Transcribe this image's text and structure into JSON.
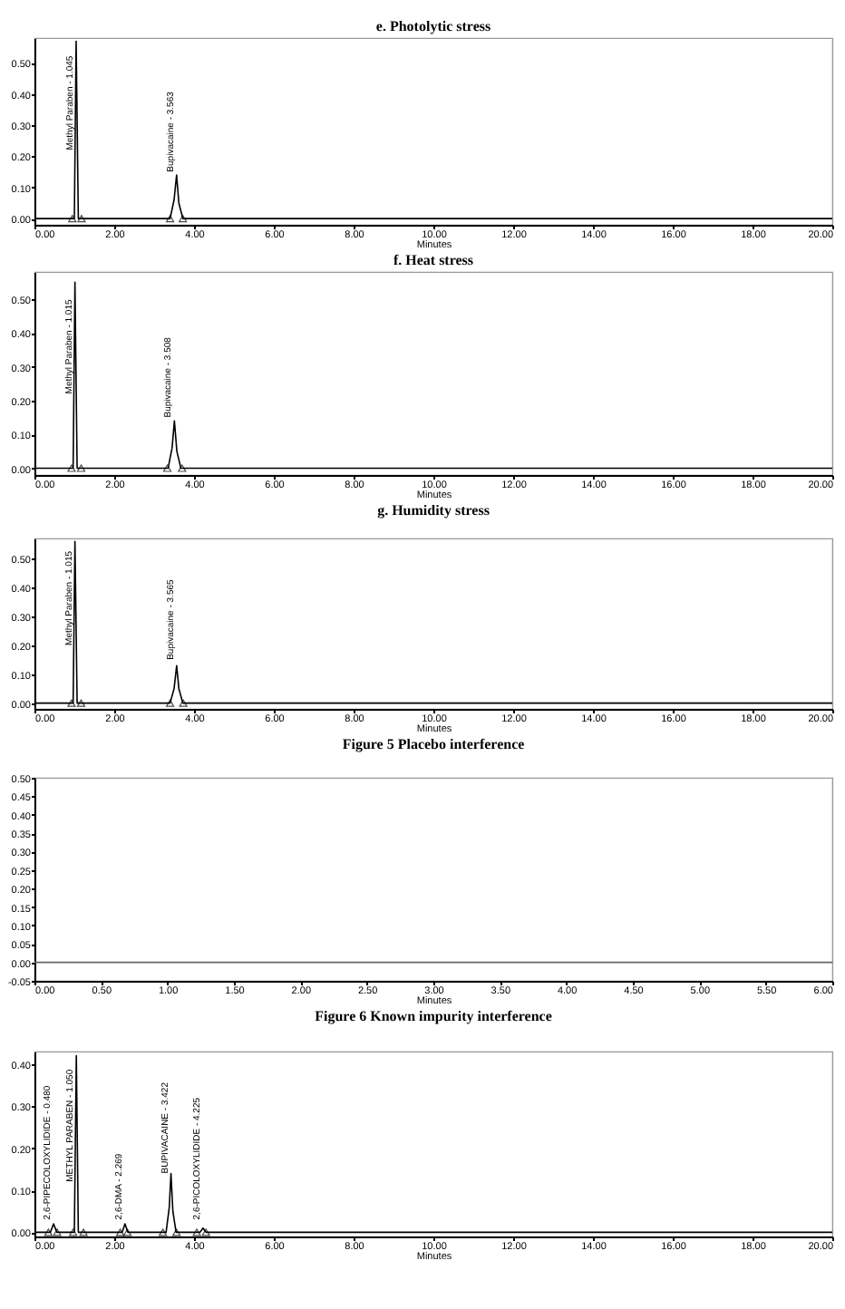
{
  "chart_data": [
    {
      "type": "line",
      "title": "e. Photolytic stress",
      "xlabel": "Minutes",
      "xlim": [
        0,
        20
      ],
      "xticks": [
        {
          "value": 0,
          "label": "0.00"
        },
        {
          "value": 2,
          "label": "2.00"
        },
        {
          "value": 4,
          "label": "4.00"
        },
        {
          "value": 6,
          "label": "6.00"
        },
        {
          "value": 8,
          "label": "8.00"
        },
        {
          "value": 10,
          "label": "10.00"
        },
        {
          "value": 12,
          "label": "12.00"
        },
        {
          "value": 14,
          "label": "14.00"
        },
        {
          "value": 16,
          "label": "16.00"
        },
        {
          "value": 18,
          "label": "18.00"
        },
        {
          "value": 20,
          "label": "20.00"
        }
      ],
      "ylim": [
        -0.02,
        0.58
      ],
      "yticks": [
        {
          "value": 0,
          "label": "0.00"
        },
        {
          "value": 0.1,
          "label": "0.10"
        },
        {
          "value": 0.2,
          "label": "0.20"
        },
        {
          "value": 0.3,
          "label": "0.30"
        },
        {
          "value": 0.4,
          "label": "0.40"
        },
        {
          "value": 0.5,
          "label": "0.50"
        }
      ],
      "series": [
        {
          "color": "#000000",
          "x": [
            0,
            1.0,
            1.045,
            1.1,
            3.4,
            3.5,
            3.563,
            3.62,
            3.72,
            20
          ],
          "values": [
            0,
            0,
            0.57,
            0,
            0,
            0.06,
            0.14,
            0.05,
            0,
            0
          ]
        },
        {
          "type": "scatter",
          "marker": "triangle",
          "color": "#000000",
          "x": [
            0.95,
            1.18,
            3.4,
            3.72
          ],
          "values": [
            0,
            0,
            0,
            0
          ]
        }
      ],
      "annotations": [
        {
          "text": "Methyl Paraben - 1.045",
          "x": 1.045,
          "y": 0.22
        },
        {
          "text": "Bupivacaine - 3.563",
          "x": 3.563,
          "y": 0.15
        }
      ]
    },
    {
      "type": "line",
      "title": "f. Heat stress",
      "xlabel": "Minutes",
      "xlim": [
        0,
        20
      ],
      "xticks": [
        {
          "value": 0,
          "label": "0.00"
        },
        {
          "value": 2,
          "label": "2.00"
        },
        {
          "value": 4,
          "label": "4.00"
        },
        {
          "value": 6,
          "label": "6.00"
        },
        {
          "value": 8,
          "label": "8.00"
        },
        {
          "value": 10,
          "label": "10.00"
        },
        {
          "value": 12,
          "label": "12.00"
        },
        {
          "value": 14,
          "label": "14.00"
        },
        {
          "value": 16,
          "label": "16.00"
        },
        {
          "value": 18,
          "label": "18.00"
        },
        {
          "value": 20,
          "label": "20.00"
        }
      ],
      "ylim": [
        -0.02,
        0.58
      ],
      "yticks": [
        {
          "value": 0,
          "label": "0.00"
        },
        {
          "value": 0.1,
          "label": "0.10"
        },
        {
          "value": 0.2,
          "label": "0.20"
        },
        {
          "value": 0.3,
          "label": "0.30"
        },
        {
          "value": 0.4,
          "label": "0.40"
        },
        {
          "value": 0.5,
          "label": "0.50"
        }
      ],
      "series": [
        {
          "color": "#000000",
          "x": [
            0,
            0.97,
            1.015,
            1.07,
            3.35,
            3.45,
            3.508,
            3.57,
            3.67,
            20
          ],
          "values": [
            0,
            0,
            0.55,
            0,
            0,
            0.06,
            0.14,
            0.05,
            0,
            0
          ]
        },
        {
          "type": "scatter",
          "marker": "triangle",
          "color": "#000000",
          "x": [
            0.93,
            1.17,
            3.33,
            3.7
          ],
          "values": [
            0,
            0,
            0,
            0
          ]
        }
      ],
      "annotations": [
        {
          "text": "Methyl Paraben - 1.015",
          "x": 1.015,
          "y": 0.22
        },
        {
          "text": "Bupivacaine - 3.508",
          "x": 3.508,
          "y": 0.15
        }
      ]
    },
    {
      "type": "line",
      "title": "g. Humidity stress",
      "xlabel": "Minutes",
      "xlim": [
        0,
        20
      ],
      "xticks": [
        {
          "value": 0,
          "label": "0.00"
        },
        {
          "value": 2,
          "label": "2.00"
        },
        {
          "value": 4,
          "label": "4.00"
        },
        {
          "value": 6,
          "label": "6.00"
        },
        {
          "value": 8,
          "label": "8.00"
        },
        {
          "value": 10,
          "label": "10.00"
        },
        {
          "value": 12,
          "label": "12.00"
        },
        {
          "value": 14,
          "label": "14.00"
        },
        {
          "value": 16,
          "label": "16.00"
        },
        {
          "value": 18,
          "label": "18.00"
        },
        {
          "value": 20,
          "label": "20.00"
        }
      ],
      "ylim": [
        -0.02,
        0.57
      ],
      "yticks": [
        {
          "value": 0,
          "label": "0.00"
        },
        {
          "value": 0.1,
          "label": "0.10"
        },
        {
          "value": 0.2,
          "label": "0.20"
        },
        {
          "value": 0.3,
          "label": "0.30"
        },
        {
          "value": 0.4,
          "label": "0.40"
        },
        {
          "value": 0.5,
          "label": "0.50"
        }
      ],
      "series": [
        {
          "color": "#000000",
          "x": [
            0,
            0.97,
            1.015,
            1.07,
            3.4,
            3.5,
            3.565,
            3.62,
            3.72,
            20
          ],
          "values": [
            0,
            0,
            0.56,
            0,
            0,
            0.05,
            0.13,
            0.05,
            0,
            0
          ]
        },
        {
          "type": "scatter",
          "marker": "triangle",
          "color": "#000000",
          "x": [
            0.93,
            1.17,
            3.4,
            3.73
          ],
          "values": [
            0,
            0,
            0,
            0
          ]
        }
      ],
      "annotations": [
        {
          "text": "Methyl Paraben - 1.015",
          "x": 1.015,
          "y": 0.2
        },
        {
          "text": "Bupivacaine - 3.565",
          "x": 3.565,
          "y": 0.15
        }
      ]
    },
    {
      "type": "line",
      "title": "Figure 5 Placebo interference",
      "xlabel": "Minutes",
      "xlim": [
        0,
        6
      ],
      "xticks": [
        {
          "value": 0,
          "label": "0.00"
        },
        {
          "value": 0.5,
          "label": "0.50"
        },
        {
          "value": 1,
          "label": "1.00"
        },
        {
          "value": 1.5,
          "label": "1.50"
        },
        {
          "value": 2,
          "label": "2.00"
        },
        {
          "value": 2.5,
          "label": "2.50"
        },
        {
          "value": 3,
          "label": "3.00"
        },
        {
          "value": 3.5,
          "label": "3.50"
        },
        {
          "value": 4,
          "label": "4.00"
        },
        {
          "value": 4.5,
          "label": "4.50"
        },
        {
          "value": 5,
          "label": "5.00"
        },
        {
          "value": 5.5,
          "label": "5.50"
        },
        {
          "value": 6,
          "label": "6.00"
        }
      ],
      "ylim": [
        -0.05,
        0.5
      ],
      "yticks": [
        {
          "value": -0.05,
          "label": "-0.05"
        },
        {
          "value": 0,
          "label": "0.00"
        },
        {
          "value": 0.05,
          "label": "0.05"
        },
        {
          "value": 0.1,
          "label": "0.10"
        },
        {
          "value": 0.15,
          "label": "0.15"
        },
        {
          "value": 0.2,
          "label": "0.20"
        },
        {
          "value": 0.25,
          "label": "0.25"
        },
        {
          "value": 0.3,
          "label": "0.30"
        },
        {
          "value": 0.35,
          "label": "0.35"
        },
        {
          "value": 0.4,
          "label": "0.40"
        },
        {
          "value": 0.45,
          "label": "0.45"
        },
        {
          "value": 0.5,
          "label": "0.50"
        }
      ],
      "series": [
        {
          "color": "#666666",
          "x": [
            0,
            6
          ],
          "values": [
            0,
            0
          ]
        }
      ]
    },
    {
      "type": "line",
      "title": "Figure 6 Known impurity interference",
      "xlabel": "Minutes",
      "xlim": [
        0,
        20
      ],
      "xticks": [
        {
          "value": 0,
          "label": "0.00"
        },
        {
          "value": 2,
          "label": "2.00"
        },
        {
          "value": 4,
          "label": "4.00"
        },
        {
          "value": 6,
          "label": "6.00"
        },
        {
          "value": 8,
          "label": "8.00"
        },
        {
          "value": 10,
          "label": "10.00"
        },
        {
          "value": 12,
          "label": "12.00"
        },
        {
          "value": 14,
          "label": "14.00"
        },
        {
          "value": 16,
          "label": "16.00"
        },
        {
          "value": 18,
          "label": "18.00"
        },
        {
          "value": 20,
          "label": "20.00"
        }
      ],
      "ylim": [
        -0.01,
        0.43
      ],
      "yticks": [
        {
          "value": 0,
          "label": "0.00"
        },
        {
          "value": 0.1,
          "label": "0.10"
        },
        {
          "value": 0.2,
          "label": "0.20"
        },
        {
          "value": 0.3,
          "label": "0.30"
        },
        {
          "value": 0.4,
          "label": "0.40"
        }
      ],
      "series": [
        {
          "color": "#000000",
          "x": [
            0,
            0.4,
            0.48,
            0.56,
            1.0,
            1.05,
            1.1,
            2.2,
            2.269,
            2.34,
            3.3,
            3.38,
            3.422,
            3.47,
            3.55,
            4.15,
            4.225,
            4.3,
            20
          ],
          "values": [
            0,
            0,
            0.02,
            0,
            0,
            0.42,
            0,
            0,
            0.02,
            0,
            0,
            0.06,
            0.14,
            0.05,
            0,
            0,
            0.01,
            0,
            0
          ]
        },
        {
          "type": "scatter",
          "marker": "triangle",
          "color": "#000000",
          "x": [
            0.35,
            0.57,
            0.97,
            1.23,
            2.15,
            2.33,
            3.22,
            3.56,
            4.07,
            4.3
          ],
          "values": [
            0,
            0,
            0,
            0,
            0,
            0,
            0,
            0,
            0,
            0
          ]
        }
      ],
      "annotations": [
        {
          "text": "2,6-PIPECOLOXYLIDIDE - 0.480",
          "x": 0.48,
          "y": 0.03
        },
        {
          "text": "METHYL PARABEN - 1.050",
          "x": 1.05,
          "y": 0.12
        },
        {
          "text": "2,6-DMA - 2.269",
          "x": 2.269,
          "y": 0.03
        },
        {
          "text": "BUPIVACAINE - 3.422",
          "x": 3.422,
          "y": 0.14
        },
        {
          "text": "2,6-PICOLOXYLIDIDE - 4.225",
          "x": 4.225,
          "y": 0.03
        }
      ]
    }
  ]
}
